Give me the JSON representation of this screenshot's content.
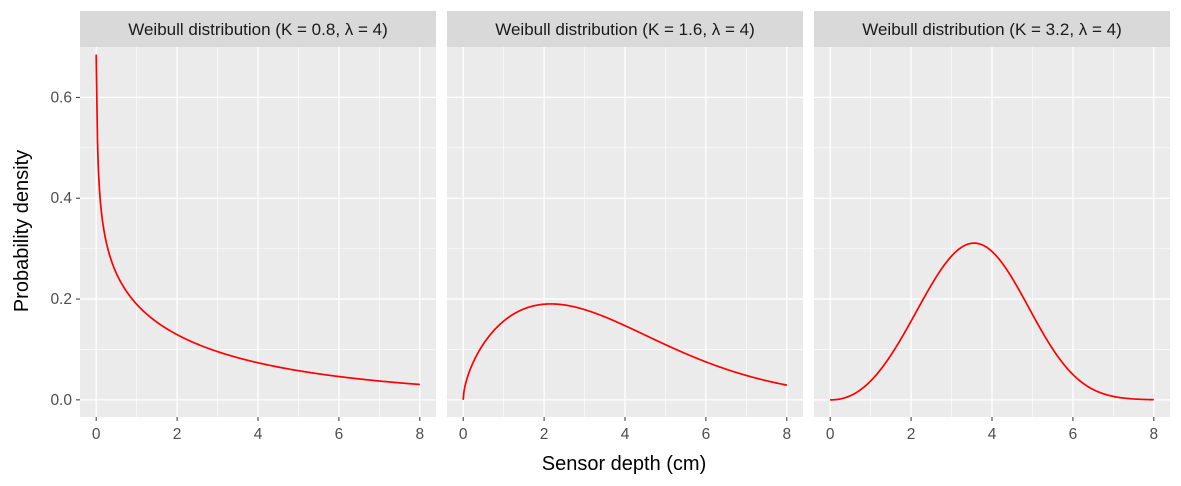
{
  "chart_data": {
    "type": "line",
    "xlabel": "Sensor depth (cm)",
    "ylabel": "Probability density",
    "xlim": [
      -0.4,
      8.4
    ],
    "ylim": [
      -0.034,
      0.7
    ],
    "x_ticks": [
      0,
      2,
      4,
      6,
      8
    ],
    "x_tick_labels": [
      "0",
      "2",
      "4",
      "6",
      "8"
    ],
    "y_ticks": [
      0.0,
      0.2,
      0.4,
      0.6
    ],
    "y_tick_labels": [
      "0.0",
      "0.2",
      "0.4",
      "0.6"
    ],
    "grid": true,
    "line_color": "#ff0000",
    "panel_background": "#ebebeb",
    "strip_background": "#d9d9d9",
    "panels": [
      {
        "title": "Weibull distribution (K = 0.8,  λ = 4)",
        "shape": 0.8,
        "scale": 4,
        "x": [
          0.001,
          0.05,
          0.1,
          0.25,
          0.5,
          1,
          1.5,
          2,
          3,
          4,
          5,
          6,
          7,
          8
        ],
        "y": [
          0.685,
          0.4,
          0.362,
          0.282,
          0.232,
          0.179,
          0.151,
          0.132,
          0.105,
          0.086,
          0.071,
          0.059,
          0.049,
          0.031
        ]
      },
      {
        "title": "Weibull distribution (K = 1.6,  λ = 4)",
        "shape": 1.6,
        "scale": 4,
        "x": [
          0,
          0.25,
          0.5,
          1,
          1.5,
          2,
          2.5,
          3,
          4,
          5,
          6,
          7,
          8
        ],
        "y": [
          0,
          0.08,
          0.112,
          0.153,
          0.178,
          0.188,
          0.188,
          0.181,
          0.147,
          0.108,
          0.073,
          0.047,
          0.029
        ]
      },
      {
        "title": "Weibull distribution (K = 3.2,  λ = 4)",
        "shape": 3.2,
        "scale": 4,
        "x": [
          0,
          0.5,
          1,
          1.5,
          2,
          2.5,
          3,
          3.5,
          4,
          4.5,
          5,
          5.5,
          6,
          7,
          8
        ],
        "y": [
          0,
          0.0024,
          0.0097,
          0.038,
          0.094,
          0.17,
          0.25,
          0.303,
          0.294,
          0.232,
          0.148,
          0.077,
          0.031,
          0.0039,
          0.0002
        ]
      }
    ]
  }
}
